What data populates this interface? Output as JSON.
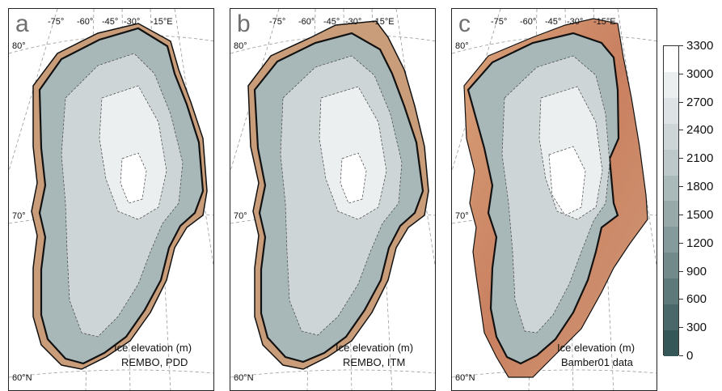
{
  "panels": [
    {
      "letter": "a",
      "caption_title": "Ice elevation (m)",
      "caption_source": "REMBO, PDD"
    },
    {
      "letter": "b",
      "caption_title": "Ice elevation (m)",
      "caption_source": "REMBO, ITM"
    },
    {
      "letter": "c",
      "caption_title": "Ice elevation (m)",
      "caption_source": "Bamber01 data"
    }
  ],
  "graticule": {
    "longitudes": [
      "-75°",
      "-60°",
      "-45°",
      "-30°",
      "-15°E"
    ],
    "lat80": "80°",
    "lat70": "70°",
    "lat60": "60°N"
  },
  "colorbar": {
    "ticks": [
      "3300",
      "3000",
      "2700",
      "2400",
      "2100",
      "1800",
      "1500",
      "1200",
      "900",
      "600",
      "300",
      "0"
    ],
    "colors": [
      "#ffffff",
      "#eceff0",
      "#dde3e4",
      "#cdd5d6",
      "#bcc8c9",
      "#aab9ba",
      "#98a9aa",
      "#859a9a",
      "#728a8a",
      "#5e7979",
      "#4a6869",
      "#365758"
    ]
  },
  "colors": {
    "bedrock": "#c99d7a",
    "outline": "#111111"
  }
}
